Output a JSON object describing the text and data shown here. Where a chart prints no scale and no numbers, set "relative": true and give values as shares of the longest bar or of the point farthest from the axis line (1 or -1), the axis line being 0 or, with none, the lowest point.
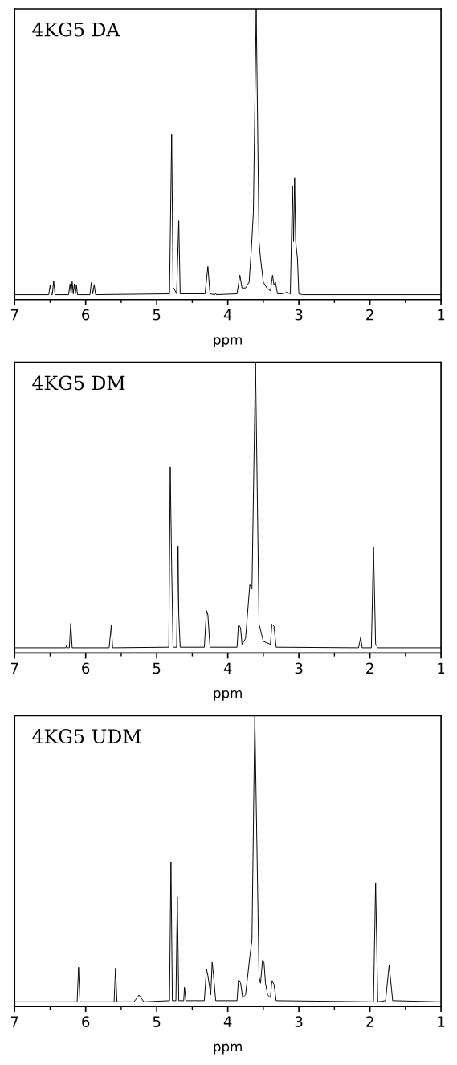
{
  "chart_data": [
    {
      "type": "line",
      "title": "4KG5 DA",
      "xlabel": "ppm",
      "xlim": [
        7,
        1
      ],
      "xticks": [
        7,
        6,
        5,
        4,
        3,
        2,
        1
      ],
      "relative": true,
      "tick_labels": "x",
      "series": [
        {
          "color": "#000000",
          "x": [
            7.0,
            6.52,
            6.5,
            6.48,
            6.47,
            6.45,
            6.43,
            6.24,
            6.22,
            6.205,
            6.19,
            6.175,
            6.16,
            6.145,
            6.13,
            6.115,
            5.94,
            5.92,
            5.9,
            5.88,
            5.86,
            4.82,
            4.79,
            4.77,
            4.76,
            4.72,
            4.69,
            4.67,
            4.32,
            4.28,
            4.25,
            4.18,
            4.17,
            4.16,
            3.87,
            3.83,
            3.8,
            3.75,
            3.7,
            3.67,
            3.64,
            3.6,
            3.56,
            3.54,
            3.5,
            3.45,
            3.4,
            3.37,
            3.35,
            3.33,
            3.3,
            3.24,
            3.17,
            3.12,
            3.09,
            3.075,
            3.06,
            3.045,
            3.02,
            3.0,
            2.95,
            1.0
          ],
          "values": [
            0.017,
            0.017,
            0.049,
            0.017,
            0.017,
            0.064,
            0.017,
            0.017,
            0.054,
            0.02,
            0.062,
            0.02,
            0.054,
            0.02,
            0.051,
            0.017,
            0.017,
            0.059,
            0.02,
            0.052,
            0.017,
            0.02,
            0.568,
            0.04,
            0.04,
            0.02,
            0.271,
            0.02,
            0.02,
            0.114,
            0.02,
            0.017,
            0.022,
            0.017,
            0.02,
            0.084,
            0.04,
            0.04,
            0.06,
            0.168,
            0.3,
            1.0,
            0.2,
            0.143,
            0.06,
            0.04,
            0.03,
            0.084,
            0.05,
            0.06,
            0.02,
            0.02,
            0.025,
            0.02,
            0.39,
            0.2,
            0.42,
            0.2,
            0.143,
            0.02,
            0.017,
            0.017
          ]
        }
      ]
    },
    {
      "type": "line",
      "title": "4KG5 DM",
      "xlabel": "ppm",
      "xlim": [
        7,
        1
      ],
      "xticks": [
        7,
        6,
        5,
        4,
        3,
        2,
        1
      ],
      "relative": true,
      "tick_labels": "x",
      "series": [
        {
          "color": "#000000",
          "x": [
            7.0,
            6.28,
            6.27,
            6.26,
            6.23,
            6.21,
            6.19,
            5.67,
            5.64,
            5.62,
            4.83,
            4.81,
            4.79,
            4.77,
            4.72,
            4.7,
            4.69,
            4.67,
            4.33,
            4.3,
            4.28,
            4.25,
            3.87,
            3.85,
            3.82,
            3.8,
            3.75,
            3.69,
            3.66,
            3.61,
            3.56,
            3.5,
            3.4,
            3.38,
            3.35,
            3.32,
            2.16,
            2.13,
            2.11,
            1.98,
            1.95,
            1.92,
            1.89,
            1.0
          ],
          "values": [
            0.018,
            0.018,
            0.025,
            0.018,
            0.018,
            0.102,
            0.018,
            0.018,
            0.095,
            0.018,
            0.02,
            0.64,
            0.3,
            0.02,
            0.02,
            0.368,
            0.131,
            0.02,
            0.02,
            0.146,
            0.131,
            0.02,
            0.02,
            0.097,
            0.087,
            0.03,
            0.05,
            0.235,
            0.22,
            1.0,
            0.1,
            0.04,
            0.03,
            0.099,
            0.092,
            0.02,
            0.018,
            0.054,
            0.018,
            0.018,
            0.366,
            0.03,
            0.018,
            0.018
          ]
        }
      ]
    },
    {
      "type": "line",
      "title": "4KG5 UDM",
      "xlabel": "ppm",
      "xlim": [
        7,
        1
      ],
      "xticks": [
        7,
        6,
        5,
        4,
        3,
        2,
        1
      ],
      "relative": true,
      "tick_labels": "x",
      "series": [
        {
          "color": "#000000",
          "x": [
            7.0,
            6.12,
            6.1,
            6.08,
            5.6,
            5.58,
            5.56,
            5.32,
            5.25,
            5.18,
            4.82,
            4.8,
            4.78,
            4.73,
            4.71,
            4.69,
            4.62,
            4.61,
            4.59,
            4.33,
            4.3,
            4.28,
            4.24,
            4.22,
            4.2,
            4.17,
            3.87,
            3.85,
            3.82,
            3.79,
            3.75,
            3.69,
            3.66,
            3.62,
            3.56,
            3.54,
            3.51,
            3.49,
            3.47,
            3.44,
            3.4,
            3.38,
            3.35,
            3.32,
            1.95,
            1.92,
            1.89,
            1.78,
            1.73,
            1.68,
            1.0
          ],
          "values": [
            0.016,
            0.016,
            0.135,
            0.016,
            0.016,
            0.132,
            0.016,
            0.016,
            0.039,
            0.016,
            0.02,
            0.496,
            0.02,
            0.02,
            0.377,
            0.02,
            0.02,
            0.066,
            0.02,
            0.02,
            0.13,
            0.106,
            0.04,
            0.152,
            0.106,
            0.02,
            0.02,
            0.091,
            0.081,
            0.03,
            0.04,
            0.17,
            0.229,
            1.0,
            0.1,
            0.08,
            0.16,
            0.15,
            0.08,
            0.04,
            0.03,
            0.089,
            0.076,
            0.02,
            0.016,
            0.425,
            0.016,
            0.02,
            0.142,
            0.02,
            0.016
          ]
        }
      ]
    }
  ]
}
